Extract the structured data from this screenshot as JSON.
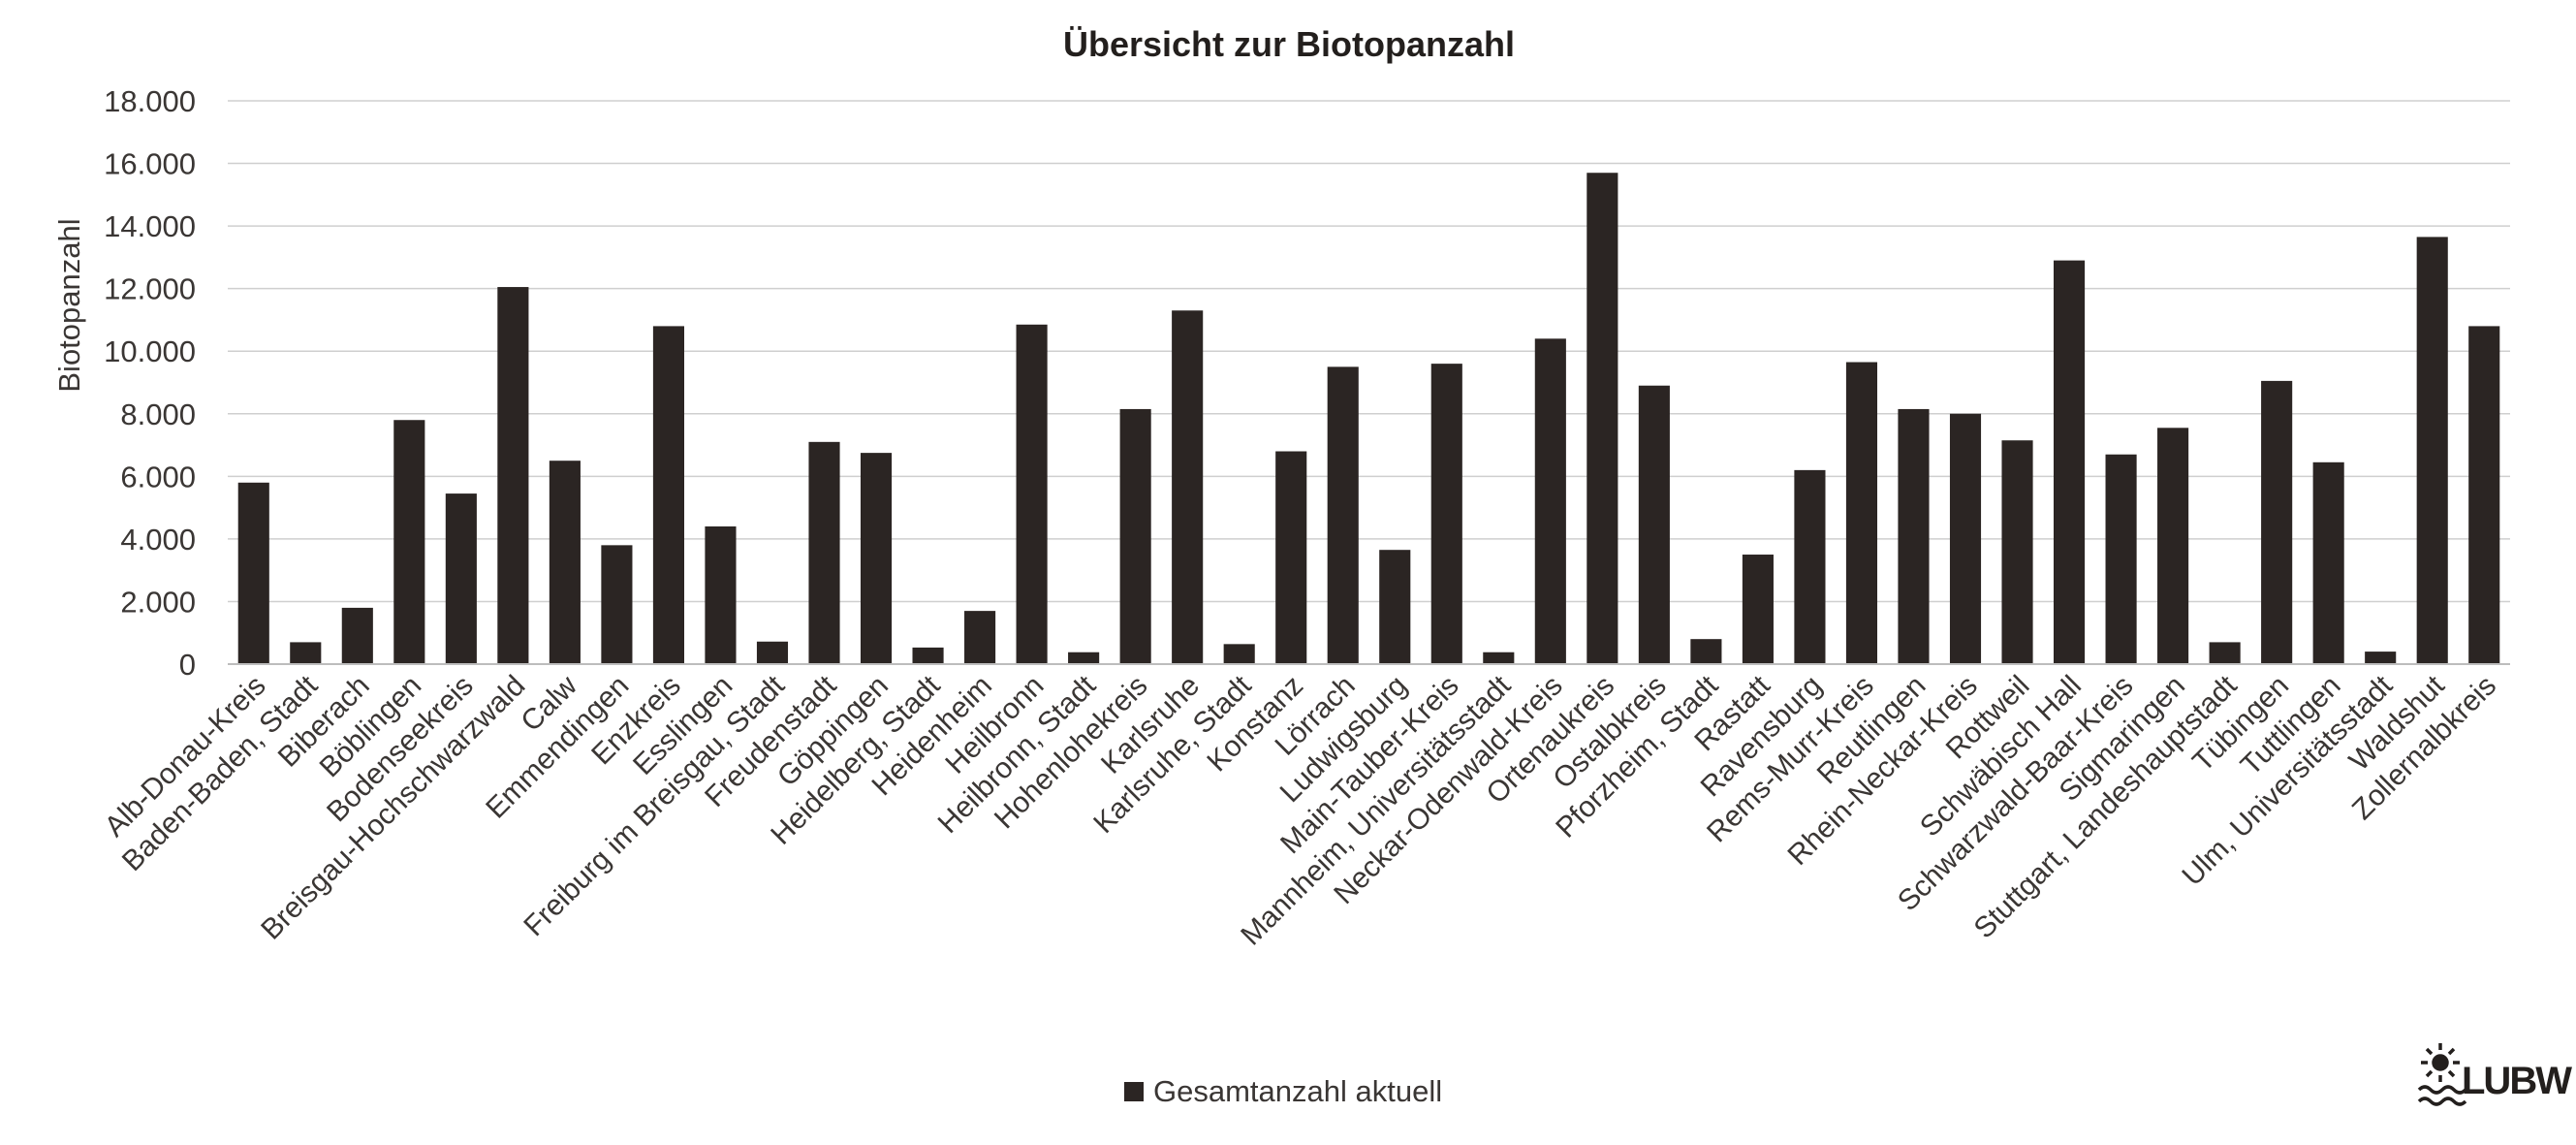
{
  "chart_data": {
    "type": "bar",
    "title": "Übersicht zur Biotopanzahl",
    "xlabel": "",
    "ylabel": "Biotopanzahl",
    "ylim": [
      0,
      18000
    ],
    "yticks": [
      "0",
      "2.000",
      "4.000",
      "6.000",
      "8.000",
      "10.000",
      "12.000",
      "14.000",
      "16.000",
      "18.000"
    ],
    "grid": true,
    "legend_position": "bottom",
    "color": "#2b2523",
    "categories": [
      "Alb-Donau-Kreis",
      "Baden-Baden, Stadt",
      "Biberach",
      "Böblingen",
      "Bodenseekreis",
      "Breisgau-Hochschwarzwald",
      "Calw",
      "Emmendingen",
      "Enzkreis",
      "Esslingen",
      "Freiburg im Breisgau, Stadt",
      "Freudenstadt",
      "Göppingen",
      "Heidelberg, Stadt",
      "Heidenheim",
      "Heilbronn",
      "Heilbronn, Stadt",
      "Hohenlohekreis",
      "Karlsruhe",
      "Karlsruhe, Stadt",
      "Konstanz",
      "Lörrach",
      "Ludwigsburg",
      "Main-Tauber-Kreis",
      "Mannheim, Universitätsstadt",
      "Neckar-Odenwald-Kreis",
      "Ortenaukreis",
      "Ostalbkreis",
      "Pforzheim, Stadt",
      "Rastatt",
      "Ravensburg",
      "Rems-Murr-Kreis",
      "Reutlingen",
      "Rhein-Neckar-Kreis",
      "Rottweil",
      "Schwäbisch Hall",
      "Schwarzwald-Baar-Kreis",
      "Sigmaringen",
      "Stuttgart, Landeshauptstadt",
      "Tübingen",
      "Tuttlingen",
      "Ulm, Universitätsstadt",
      "Waldshut",
      "Zollernalbkreis"
    ],
    "series": [
      {
        "name": "Gesamtanzahl aktuell",
        "values": [
          5800,
          700,
          1800,
          7800,
          5450,
          12050,
          6500,
          3800,
          10800,
          4400,
          720,
          7100,
          6750,
          530,
          1700,
          10850,
          380,
          8150,
          11300,
          640,
          6800,
          9500,
          3650,
          9600,
          380,
          10400,
          15700,
          8900,
          800,
          3500,
          6200,
          9650,
          8150,
          8000,
          7150,
          12900,
          6700,
          7550,
          700,
          9050,
          6450,
          400,
          13650,
          10800
        ]
      }
    ]
  },
  "logo": {
    "text": "LUBW"
  }
}
